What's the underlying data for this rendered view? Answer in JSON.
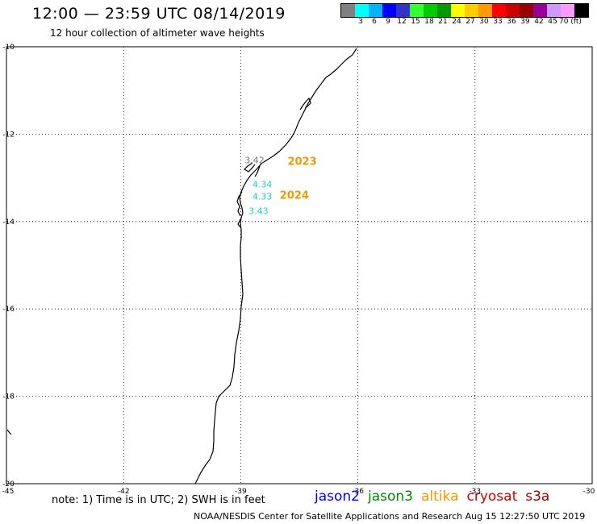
{
  "header": {
    "title": "12:00 — 23:59 UTC 08/14/2019",
    "subtitle": "12 hour collection of altimeter wave heights"
  },
  "color_scale": {
    "colors": [
      "#808080",
      "#00ffff",
      "#00b4ff",
      "#0000ff",
      "#3333cc",
      "#33ff33",
      "#00cc00",
      "#009900",
      "#ffff00",
      "#ffcc00",
      "#ff9900",
      "#ff0000",
      "#cc0000",
      "#990000",
      "#990099",
      "#cc99ff",
      "#ff99ff",
      "#000000"
    ],
    "labels": [
      "3",
      "6",
      "9",
      "12",
      "15",
      "18",
      "21",
      "24",
      "27",
      "30",
      "33",
      "36",
      "39",
      "42",
      "45",
      "70 (ft)"
    ]
  },
  "map": {
    "lat_ticks": [
      "-10",
      "-12",
      "-14",
      "-16",
      "-18",
      "-20"
    ],
    "lon_ticks": [
      "-45",
      "-42",
      "-39",
      "-36",
      "-33",
      "-30"
    ],
    "observations": [
      {
        "text": "3.42",
        "color": "#777777",
        "lon": -38.9,
        "lat": -12.67
      },
      {
        "text": "4.34",
        "color": "#22cccc",
        "lon": -38.7,
        "lat": -13.22
      },
      {
        "text": "4.33",
        "color": "#22cccc",
        "lon": -38.7,
        "lat": -13.5
      },
      {
        "text": "3.43",
        "color": "#22cccc",
        "lon": -38.8,
        "lat": -13.83
      }
    ],
    "track_labels": [
      {
        "text": "2023",
        "color": "#ee9900",
        "lon": -37.8,
        "lat": -12.7
      },
      {
        "text": "2024",
        "color": "#ee9900",
        "lon": -38.0,
        "lat": -13.48
      }
    ]
  },
  "footer": {
    "note": "note: 1) Time is in UTC; 2) SWH is in feet",
    "satellites": [
      {
        "name": "jason2",
        "color": "#0000ee"
      },
      {
        "name": "jason3",
        "color": "#008800"
      },
      {
        "name": "altika",
        "color": "#ee9900"
      },
      {
        "name": "cryosat",
        "color": "#cc0000"
      },
      {
        "name": "s3a",
        "color": "#990000"
      }
    ],
    "credit": "NOAA/NESDIS Center for Satellite Applications and Research   Aug 15 12:27:50 UTC 2019"
  }
}
